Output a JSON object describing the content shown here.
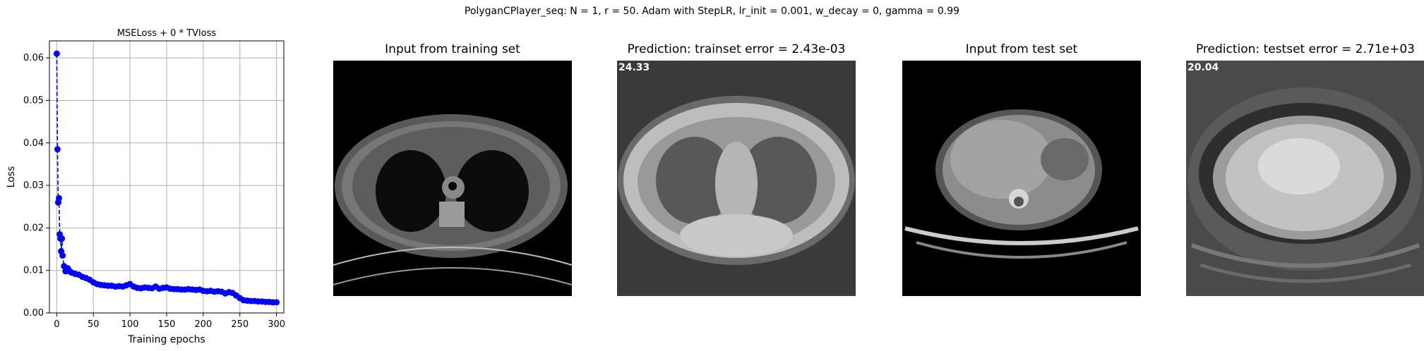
{
  "figure": {
    "suptitle": "PolyganCPlayer_seq: N = 1, r = 50. Adam with StepLR, lr_init = 0.001, w_decay = 0, gamma = 0.99"
  },
  "panels": [
    {
      "title": "Input from training set",
      "overlay": ""
    },
    {
      "title": "Prediction: trainset error = 2.43e-03",
      "overlay": "24.33"
    },
    {
      "title": "Input from test set",
      "overlay": ""
    },
    {
      "title": "Prediction: testset error = 2.71e+03",
      "overlay": "20.04"
    }
  ],
  "chart_data": {
    "type": "line",
    "title": "MSELoss + 0 * TVloss",
    "xlabel": "Training epochs",
    "ylabel": "Loss",
    "xlim": [
      -10,
      310
    ],
    "ylim": [
      0,
      0.064
    ],
    "xticks": [
      0,
      50,
      100,
      150,
      200,
      250,
      300
    ],
    "yticks": [
      0.0,
      0.01,
      0.02,
      0.03,
      0.04,
      0.05,
      0.06
    ],
    "ytick_labels": [
      "0.00",
      "0.01",
      "0.02",
      "0.03",
      "0.04",
      "0.05",
      "0.06"
    ],
    "grid": true,
    "color": "#0000ff",
    "line_style": "dashed",
    "marker": "circle",
    "series": [
      {
        "x": [
          0,
          1,
          2,
          3,
          4,
          5,
          6,
          7,
          8,
          10,
          12,
          15,
          18,
          20,
          25,
          30,
          35,
          40,
          45,
          50,
          55,
          60,
          65,
          70,
          75,
          80,
          85,
          90,
          95,
          100,
          105,
          110,
          115,
          120,
          125,
          130,
          135,
          140,
          145,
          150,
          155,
          160,
          165,
          170,
          175,
          180,
          185,
          190,
          195,
          200,
          205,
          210,
          215,
          220,
          225,
          230,
          235,
          240,
          245,
          250,
          255,
          260,
          265,
          270,
          275,
          280,
          285,
          290,
          295,
          300
        ],
        "y": [
          0.061,
          0.0385,
          0.026,
          0.027,
          0.0185,
          0.0175,
          0.0145,
          0.0175,
          0.0135,
          0.011,
          0.0098,
          0.0105,
          0.0098,
          0.0095,
          0.0092,
          0.009,
          0.0085,
          0.0082,
          0.0078,
          0.0072,
          0.0068,
          0.0066,
          0.0065,
          0.0064,
          0.0064,
          0.0062,
          0.0063,
          0.0062,
          0.0065,
          0.0068,
          0.0062,
          0.0059,
          0.0058,
          0.006,
          0.0059,
          0.0058,
          0.0062,
          0.0057,
          0.0059,
          0.006,
          0.0057,
          0.0056,
          0.0056,
          0.0055,
          0.0055,
          0.0056,
          0.0055,
          0.0054,
          0.0055,
          0.0052,
          0.0051,
          0.0052,
          0.005,
          0.0051,
          0.005,
          0.0046,
          0.0049,
          0.0047,
          0.0041,
          0.0035,
          0.003,
          0.0029,
          0.0028,
          0.0028,
          0.0027,
          0.0027,
          0.0026,
          0.0026,
          0.0025,
          0.0025
        ]
      }
    ]
  }
}
